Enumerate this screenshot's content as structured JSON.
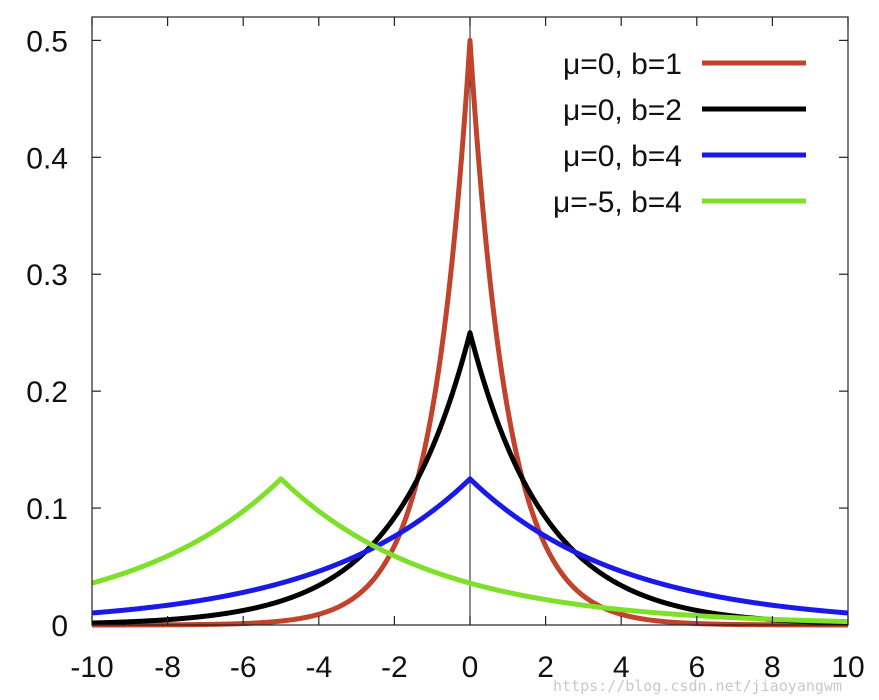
{
  "chart_data": {
    "type": "line",
    "title": "",
    "xlabel": "",
    "ylabel": "",
    "xlim": [
      -10,
      10
    ],
    "ylim": [
      0,
      0.52
    ],
    "xticks": [
      -10,
      -8,
      -6,
      -4,
      -2,
      0,
      2,
      4,
      6,
      8,
      10
    ],
    "yticks": [
      0,
      0.1,
      0.2,
      0.3,
      0.4,
      0.5
    ],
    "xtick_labels": [
      "-10",
      "-8",
      "-6",
      "-4",
      "-2",
      "0",
      "2",
      "4",
      "6",
      "8",
      "10"
    ],
    "ytick_labels": [
      "0",
      "0.1",
      "0.2",
      "0.3",
      "0.4",
      "0.5"
    ],
    "grid": false,
    "legend_position": "top-right",
    "series": [
      {
        "name": "μ=0, b=1",
        "mu": 0,
        "b": 1,
        "color": "#c1432b"
      },
      {
        "name": "μ=0, b=2",
        "mu": 0,
        "b": 2,
        "color": "#000000"
      },
      {
        "name": "μ=0, b=4",
        "mu": 0,
        "b": 4,
        "color": "#1a1ae6"
      },
      {
        "name": "μ=-5, b=4",
        "mu": -5,
        "b": 4,
        "color": "#7fe02b"
      }
    ]
  },
  "watermark": "https://blog.csdn.net/jiaoyangwm"
}
